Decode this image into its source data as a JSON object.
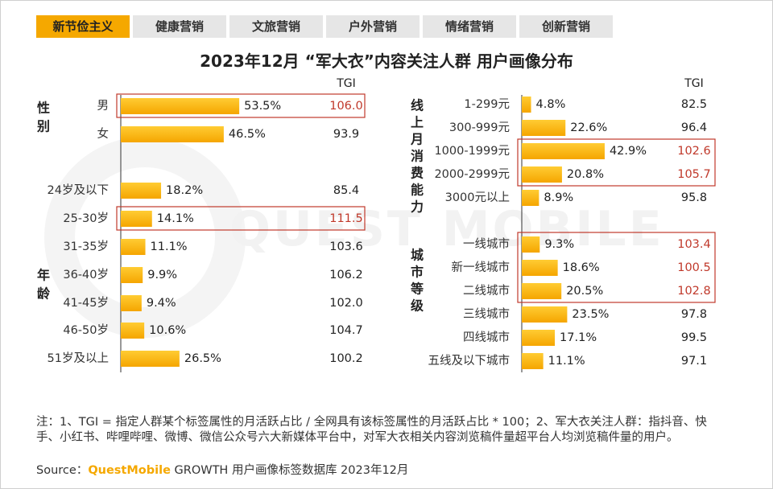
{
  "tabs": [
    {
      "label": "新节俭主义",
      "active": true
    },
    {
      "label": "健康营销",
      "active": false
    },
    {
      "label": "文旅营销",
      "active": false
    },
    {
      "label": "户外营销",
      "active": false
    },
    {
      "label": "情绪营销",
      "active": false
    },
    {
      "label": "创新营销",
      "active": false
    }
  ],
  "title": "2023年12月 “军大衣”内容关注人群 用户画像分布",
  "watermark": "QUEST MOBILE",
  "colors": {
    "bar_start": "#ffcc33",
    "bar_end": "#f5a500",
    "highlight_box": "#c0392b",
    "tgi_highlight": "#c0392b",
    "tab_active": "#f5a800"
  },
  "chart_data": [
    {
      "type": "bar",
      "orientation": "horizontal",
      "tgi_header": "TGI",
      "groups": [
        {
          "title": "性别",
          "categories": [
            "男",
            "女"
          ],
          "values": [
            53.5,
            46.5
          ],
          "labels": [
            "53.5%",
            "46.5%"
          ],
          "tgi": [
            "106.0",
            "93.9"
          ],
          "highlighted": [
            true,
            false
          ]
        },
        {
          "title": "年龄",
          "categories": [
            "24岁及以下",
            "25-30岁",
            "31-35岁",
            "36-40岁",
            "41-45岁",
            "46-50岁",
            "51岁及以上"
          ],
          "values": [
            18.2,
            14.1,
            11.1,
            9.9,
            9.4,
            10.6,
            26.5
          ],
          "labels": [
            "18.2%",
            "14.1%",
            "11.1%",
            "9.9%",
            "9.4%",
            "10.6%",
            "26.5%"
          ],
          "tgi": [
            "85.4",
            "111.5",
            "103.6",
            "106.2",
            "102.0",
            "104.7",
            "100.2"
          ],
          "highlighted": [
            false,
            true,
            false,
            false,
            false,
            false,
            false
          ]
        }
      ]
    },
    {
      "type": "bar",
      "orientation": "horizontal",
      "tgi_header": "TGI",
      "groups": [
        {
          "title": "线上月消费能力",
          "categories": [
            "1-299元",
            "300-999元",
            "1000-1999元",
            "2000-2999元",
            "3000元以上"
          ],
          "values": [
            4.8,
            22.6,
            42.9,
            20.8,
            8.9
          ],
          "labels": [
            "4.8%",
            "22.6%",
            "42.9%",
            "20.8%",
            "8.9%"
          ],
          "tgi": [
            "82.5",
            "96.4",
            "102.6",
            "105.7",
            "95.8"
          ],
          "highlighted": [
            false,
            false,
            true,
            true,
            false
          ]
        },
        {
          "title": "城市等级",
          "categories": [
            "一线城市",
            "新一线城市",
            "二线城市",
            "三线城市",
            "四线城市",
            "五线及以下城市"
          ],
          "values": [
            9.3,
            18.6,
            20.5,
            23.5,
            17.1,
            11.1
          ],
          "labels": [
            "9.3%",
            "18.6%",
            "20.5%",
            "23.5%",
            "17.1%",
            "11.1%"
          ],
          "tgi": [
            "103.4",
            "100.5",
            "102.8",
            "97.8",
            "99.5",
            "97.1"
          ],
          "highlighted": [
            true,
            true,
            true,
            false,
            false,
            false
          ]
        }
      ]
    }
  ],
  "note": "注：1、TGI = 指定人群某个标签属性的月活跃占比 / 全网具有该标签属性的月活跃占比 * 100；2、军大衣关注人群：指抖音、快手、小红书、哔哩哔哩、微博、微信公众号六大新媒体平台中，对军大衣相关内容浏览稿件量超平台人均浏览稿件量的用户。",
  "source": {
    "prefix": "Source：",
    "brand": "QuestMobile",
    "suffix": " GROWTH 用户画像标签数据库 2023年12月"
  }
}
